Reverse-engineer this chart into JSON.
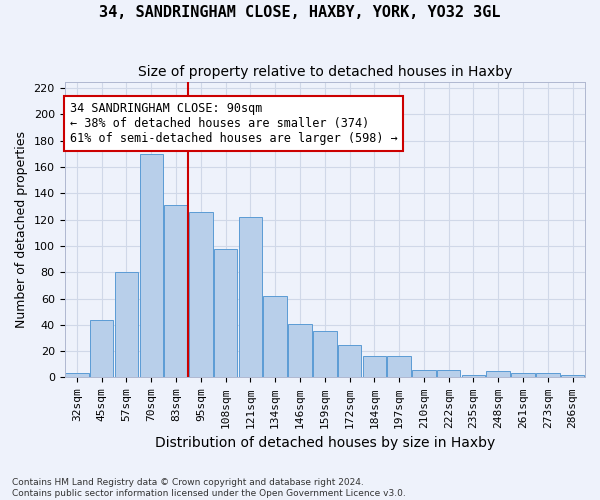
{
  "title": "34, SANDRINGHAM CLOSE, HAXBY, YORK, YO32 3GL",
  "subtitle": "Size of property relative to detached houses in Haxby",
  "xlabel": "Distribution of detached houses by size in Haxby",
  "ylabel": "Number of detached properties",
  "footer_line1": "Contains HM Land Registry data © Crown copyright and database right 2024.",
  "footer_line2": "Contains public sector information licensed under the Open Government Licence v3.0.",
  "categories": [
    "32sqm",
    "45sqm",
    "57sqm",
    "70sqm",
    "83sqm",
    "95sqm",
    "108sqm",
    "121sqm",
    "134sqm",
    "146sqm",
    "159sqm",
    "172sqm",
    "184sqm",
    "197sqm",
    "210sqm",
    "222sqm",
    "235sqm",
    "248sqm",
    "261sqm",
    "273sqm",
    "286sqm"
  ],
  "values": [
    3,
    44,
    80,
    170,
    131,
    126,
    98,
    122,
    62,
    41,
    35,
    25,
    16,
    16,
    6,
    6,
    2,
    5,
    3,
    3,
    2
  ],
  "bar_color": "#b8cfea",
  "bar_edge_color": "#5b9bd5",
  "grid_color": "#d0d8e8",
  "background_color": "#eef2fb",
  "annotation_text": "34 SANDRINGHAM CLOSE: 90sqm\n← 38% of detached houses are smaller (374)\n61% of semi-detached houses are larger (598) →",
  "annotation_box_color": "#ffffff",
  "annotation_box_edge": "#cc0000",
  "vline_x": 4.5,
  "vline_color": "#cc0000",
  "ylim": [
    0,
    225
  ],
  "yticks": [
    0,
    20,
    40,
    60,
    80,
    100,
    120,
    140,
    160,
    180,
    200,
    220
  ],
  "title_fontsize": 11,
  "subtitle_fontsize": 10,
  "xlabel_fontsize": 10,
  "ylabel_fontsize": 9,
  "tick_fontsize": 8,
  "annotation_fontsize": 8.5
}
